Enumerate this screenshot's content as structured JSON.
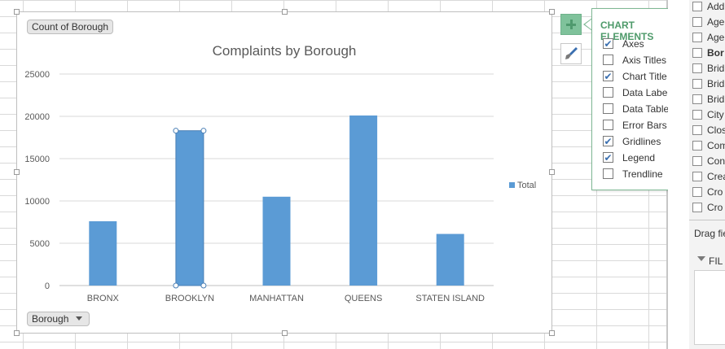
{
  "chart_data": {
    "type": "bar",
    "title": "Complaints by Borough",
    "categories": [
      "BRONX",
      "BROOKLYN",
      "MANHATTAN",
      "QUEENS",
      "STATEN ISLAND"
    ],
    "series": [
      {
        "name": "Total",
        "values": [
          7600,
          18300,
          10500,
          20100,
          6100
        ]
      }
    ],
    "y_ticks": [
      "25000",
      "20000",
      "15000",
      "10000",
      "5000",
      "0"
    ],
    "ylim": [
      0,
      25000
    ],
    "grid": true,
    "legend_position": "right",
    "bar_color": "#5b9bd5"
  },
  "pivot_buttons": {
    "value_field": "Count of Borough",
    "axis_field": "Borough"
  },
  "legend": {
    "label": "Total"
  },
  "chart_elements": {
    "title": "CHART ELEMENTS",
    "items": [
      {
        "label": "Axes",
        "checked": true
      },
      {
        "label": "Axis Titles",
        "checked": false
      },
      {
        "label": "Chart Title",
        "checked": true
      },
      {
        "label": "Data Labels",
        "checked": false
      },
      {
        "label": "Data Table",
        "checked": false
      },
      {
        "label": "Error Bars",
        "checked": false
      },
      {
        "label": "Gridlines",
        "checked": true
      },
      {
        "label": "Legend",
        "checked": true
      },
      {
        "label": "Trendline",
        "checked": false
      }
    ]
  },
  "field_list": {
    "fields": [
      "Add",
      "Age",
      "Age",
      "Bor",
      "Brid",
      "Brid",
      "Brid",
      "City",
      "Clos",
      "Com",
      "Con",
      "Crea",
      "Cro",
      "Cro"
    ],
    "drag_hint": "Drag fie",
    "filters_label": "FIL"
  },
  "colors": {
    "accent": "#4e9a6a",
    "bar": "#5b9bd5"
  }
}
